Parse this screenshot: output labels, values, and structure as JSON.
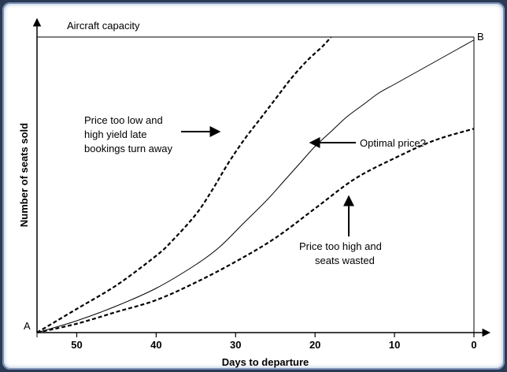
{
  "chart_data": {
    "type": "line",
    "title": "",
    "xlabel": "Days to departure",
    "ylabel": "Number of seats sold",
    "xlim": [
      55,
      0
    ],
    "ylim": [
      0,
      100
    ],
    "xticks": [
      50,
      40,
      30,
      20,
      10,
      0
    ],
    "grid": false,
    "capacity_label": "Aircraft capacity",
    "point_labels": {
      "start": "A",
      "end": "B"
    },
    "series": [
      {
        "style": "dashed-bold",
        "x": [
          55,
          50,
          45,
          40,
          38,
          35,
          33,
          31,
          29,
          27,
          25,
          23,
          21,
          19,
          18
        ],
        "y": [
          0,
          8,
          16,
          26,
          31,
          40,
          48,
          57,
          65,
          72,
          79,
          86,
          92,
          97,
          100
        ]
      },
      {
        "style": "solid-thin",
        "x": [
          55,
          50,
          45,
          40,
          35,
          32,
          29,
          26,
          24,
          22,
          20,
          18,
          16,
          14,
          12,
          10,
          8,
          6,
          4,
          2,
          0
        ],
        "y": [
          0,
          4,
          9,
          15,
          23,
          29,
          37,
          45,
          51,
          57,
          63,
          68,
          73,
          77,
          81,
          84,
          87,
          90,
          93,
          96,
          99
        ]
      },
      {
        "style": "dashed-bold",
        "x": [
          55,
          50,
          45,
          40,
          35,
          30,
          25,
          20,
          15,
          10,
          5,
          0
        ],
        "y": [
          0,
          3,
          7,
          11,
          17,
          24,
          32,
          42,
          52,
          59,
          65,
          69
        ]
      }
    ],
    "annotations": [
      {
        "lines": [
          "Price too low and",
          "high yield late",
          "bookings turn away"
        ]
      },
      {
        "lines": [
          "Optimal price?"
        ]
      },
      {
        "lines": [
          "Price too high and",
          "seats wasted"
        ]
      }
    ]
  }
}
